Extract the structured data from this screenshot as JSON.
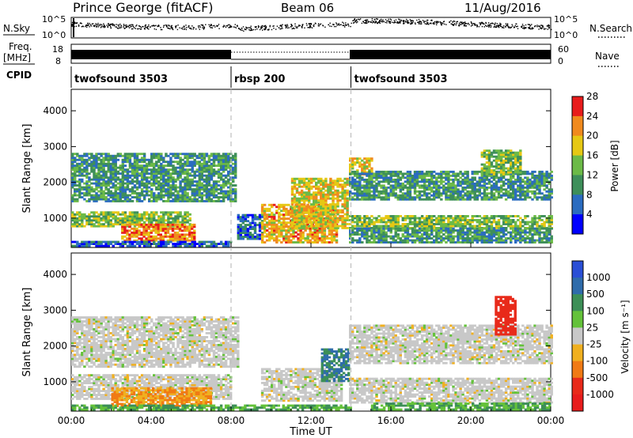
{
  "header": {
    "station": "Prince George (fitACF)",
    "beam": "Beam 06",
    "date": "11/Aug/2016"
  },
  "strips": {
    "nsky_label": "N.Sky",
    "nsky_ticks": [
      "10^5",
      "10^0"
    ],
    "nsearch_label": "N.Search",
    "freq_label_1": "Freq.",
    "freq_label_2": "[MHz]",
    "freq_ticks": [
      "18",
      "8"
    ],
    "nave_ticks": [
      "60",
      "0"
    ],
    "nave_label": "Nave",
    "cpid_label": "CPID"
  },
  "cpid_segments": [
    {
      "label": "twofsound 3503",
      "start_hour": 0,
      "end_hour": 8
    },
    {
      "label": "rbsp 200",
      "start_hour": 8,
      "end_hour": 14
    },
    {
      "label": "twofsound 3503",
      "start_hour": 14,
      "end_hour": 24
    }
  ],
  "axes": {
    "ylabel": "Slant Range [km]",
    "yticks": [
      "1000",
      "2000",
      "3000",
      "4000"
    ],
    "xticks": [
      "00:00",
      "04:00",
      "08:00",
      "12:00",
      "16:00",
      "20:00",
      "00:00"
    ],
    "xlabel": "Time UT"
  },
  "power_scale": {
    "label": "Power [dB]",
    "ticks": [
      "4",
      "8",
      "12",
      "16",
      "20",
      "24",
      "28"
    ],
    "colors": [
      "#0000ff",
      "#2b6cc0",
      "#3e8f5a",
      "#6cba47",
      "#e6c814",
      "#f08a1e",
      "#e81c1c"
    ]
  },
  "velocity_scale": {
    "label": "Velocity [m s⁻¹]",
    "ticks": [
      "1000",
      "500",
      "100",
      "25",
      "-25",
      "-100",
      "-500",
      "-1000"
    ],
    "colors": [
      "#2a4fd6",
      "#2f6cab",
      "#3d8f57",
      "#64c23a",
      "#c8c8c8",
      "#f0b020",
      "#f07a14",
      "#e82a1a",
      "#e81c1c"
    ]
  },
  "chart_data": {
    "type": "heatmap",
    "x": {
      "label": "Time UT",
      "range_hours": [
        0,
        24
      ],
      "ticks": [
        "00:00",
        "04:00",
        "08:00",
        "12:00",
        "16:00",
        "20:00",
        "00:00"
      ]
    },
    "y": {
      "label": "Slant Range [km]",
      "range_km": [
        180,
        4600
      ],
      "ticks": [
        1000,
        2000,
        3000,
        4000
      ]
    },
    "panels": [
      {
        "name": "Power",
        "unit": "dB",
        "regions": [
          {
            "t0": 0.0,
            "t1": 8.2,
            "r0": 1450,
            "r1": 2800,
            "value": 12
          },
          {
            "t0": 0.0,
            "t1": 6.0,
            "r0": 750,
            "r1": 1150,
            "value": 16
          },
          {
            "t0": 2.5,
            "t1": 6.2,
            "r0": 350,
            "r1": 800,
            "value": 24
          },
          {
            "t0": 0.0,
            "t1": 8.0,
            "r0": 200,
            "r1": 330,
            "value": 8
          },
          {
            "t0": 8.3,
            "t1": 9.5,
            "r0": 400,
            "r1": 1100,
            "value": 8
          },
          {
            "t0": 9.5,
            "t1": 13.3,
            "r0": 300,
            "r1": 1400,
            "value": 22
          },
          {
            "t0": 11.0,
            "t1": 13.8,
            "r0": 700,
            "r1": 2100,
            "value": 20
          },
          {
            "t0": 13.9,
            "t1": 15.0,
            "r0": 2200,
            "r1": 2650,
            "value": 20
          },
          {
            "t0": 13.9,
            "t1": 24.0,
            "r0": 1500,
            "r1": 2300,
            "value": 12
          },
          {
            "t0": 13.9,
            "t1": 24.0,
            "r0": 700,
            "r1": 1050,
            "value": 16
          },
          {
            "t0": 13.9,
            "t1": 24.0,
            "r0": 300,
            "r1": 700,
            "value": 12
          },
          {
            "t0": 20.5,
            "t1": 22.5,
            "r0": 2200,
            "r1": 2900,
            "value": 16
          }
        ]
      },
      {
        "name": "Velocity",
        "unit": "m s⁻¹",
        "regions": [
          {
            "t0": 0.0,
            "t1": 8.3,
            "r0": 1400,
            "r1": 2800,
            "value": 0
          },
          {
            "t0": 0.0,
            "t1": 8.0,
            "r0": 500,
            "r1": 1200,
            "value": 0
          },
          {
            "t0": 2.0,
            "t1": 7.0,
            "r0": 300,
            "r1": 800,
            "value": -100
          },
          {
            "t0": 0.0,
            "t1": 14.0,
            "r0": 200,
            "r1": 350,
            "value": 100
          },
          {
            "t0": 9.5,
            "t1": 13.5,
            "r0": 450,
            "r1": 1350,
            "value": 0
          },
          {
            "t0": 12.5,
            "t1": 13.9,
            "r0": 1000,
            "r1": 1900,
            "value": 500
          },
          {
            "t0": 13.9,
            "t1": 24.0,
            "r0": 1500,
            "r1": 2600,
            "value": 0
          },
          {
            "t0": 13.9,
            "t1": 24.0,
            "r0": 400,
            "r1": 1100,
            "value": 0
          },
          {
            "t0": 15.0,
            "t1": 24.0,
            "r0": 200,
            "r1": 400,
            "value": 100
          },
          {
            "t0": 21.2,
            "t1": 22.2,
            "r0": 2300,
            "r1": 3400,
            "value": -1000
          }
        ]
      }
    ]
  }
}
